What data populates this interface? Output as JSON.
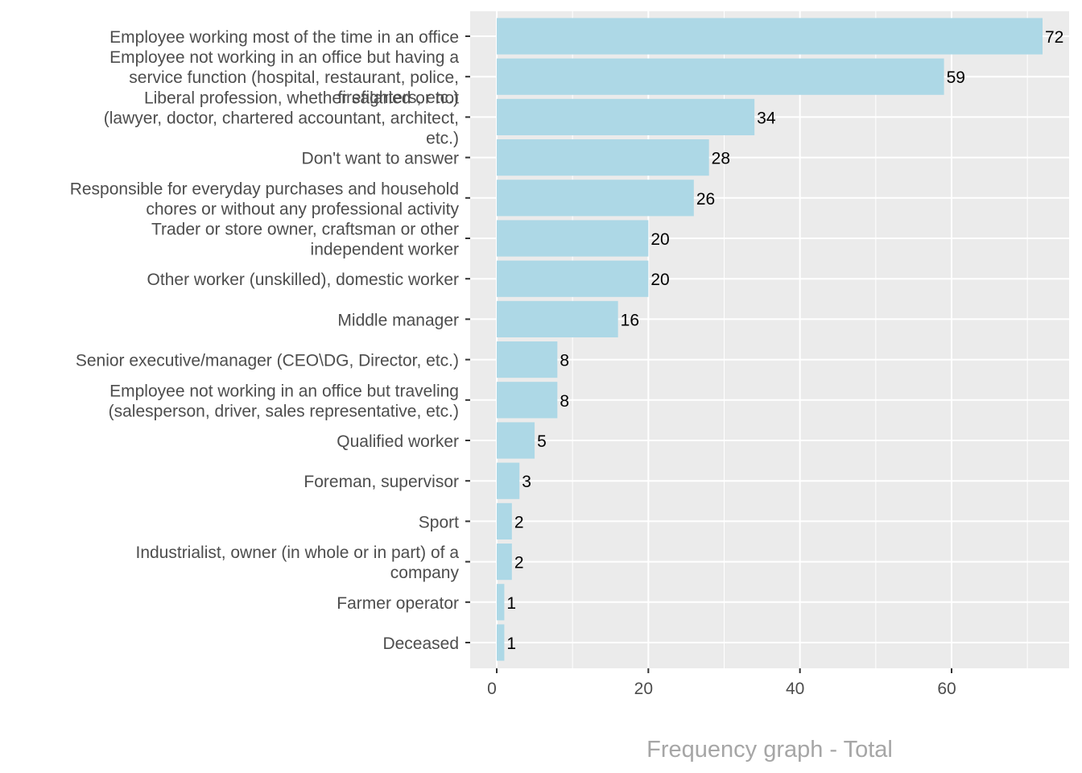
{
  "chart_data": {
    "type": "bar",
    "orientation": "horizontal",
    "title": "Frequency graph - Total",
    "title_position": "bottom-center",
    "xlabel": "",
    "ylabel": "",
    "xlim": [
      0,
      76
    ],
    "x_ticks": [
      0,
      20,
      40,
      60
    ],
    "grid": true,
    "bar_color": "#ADD8E6",
    "panel_color": "#EBEBEB",
    "categories": [
      {
        "lines": [
          "Employee working most of the time in an office"
        ],
        "value": 72
      },
      {
        "lines": [
          "Employee not working in an office but having a",
          "service function (hospital, restaurant, police,",
          "firefighters, etc.)"
        ],
        "value": 59
      },
      {
        "lines": [
          "Liberal profession, whether salaried or not",
          "(lawyer, doctor, chartered accountant, architect,",
          "etc.)"
        ],
        "value": 34
      },
      {
        "lines": [
          "Don't want to answer"
        ],
        "value": 28
      },
      {
        "lines": [
          "Responsible for everyday purchases and household",
          "chores or without any professional activity"
        ],
        "value": 26
      },
      {
        "lines": [
          "Trader or store owner, craftsman or other",
          "independent worker"
        ],
        "value": 20
      },
      {
        "lines": [
          "Other worker (unskilled), domestic worker"
        ],
        "value": 20
      },
      {
        "lines": [
          "Middle manager"
        ],
        "value": 16
      },
      {
        "lines": [
          "Senior executive/manager (CEO\\DG, Director, etc.)"
        ],
        "value": 8
      },
      {
        "lines": [
          "Employee not working in an office but traveling",
          "(salesperson, driver, sales representative, etc.)"
        ],
        "value": 8
      },
      {
        "lines": [
          "Qualified worker"
        ],
        "value": 5
      },
      {
        "lines": [
          "Foreman, supervisor"
        ],
        "value": 3
      },
      {
        "lines": [
          "Sport"
        ],
        "value": 2
      },
      {
        "lines": [
          "Industrialist, owner (in whole or in part) of a",
          "company"
        ],
        "value": 2
      },
      {
        "lines": [
          "Farmer operator"
        ],
        "value": 1
      },
      {
        "lines": [
          "Deceased"
        ],
        "value": 1
      }
    ]
  }
}
